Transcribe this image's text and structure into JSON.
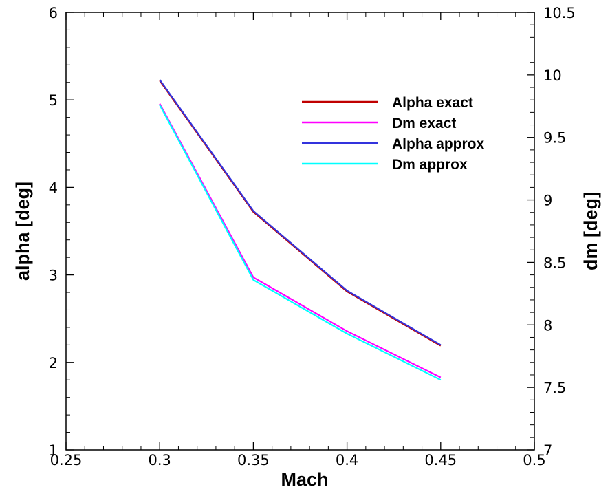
{
  "chart_data": {
    "type": "line",
    "xlabel": "Mach",
    "ylabel_left": "alpha [deg]",
    "ylabel_right": "dm [deg]",
    "xlim": [
      0.25,
      0.5
    ],
    "ylim_left": [
      1,
      6
    ],
    "ylim_right": [
      7,
      10.5
    ],
    "x_ticks": [
      "0.25",
      "0.3",
      "0.35",
      "0.4",
      "0.45",
      "0.5"
    ],
    "y_left_ticks": [
      "1",
      "2",
      "3",
      "4",
      "5",
      "6"
    ],
    "y_right_ticks": [
      "7",
      "7.5",
      "8",
      "8.5",
      "9",
      "9.5",
      "10",
      "10.5"
    ],
    "grid": false,
    "legend_position": "top-right",
    "x": [
      0.3,
      0.35,
      0.4,
      0.45
    ],
    "series": [
      {
        "name": "Alpha exact",
        "axis": "left",
        "color": "#c00000",
        "values": [
          5.22,
          3.72,
          2.81,
          2.19
        ]
      },
      {
        "name": "Dm exact",
        "axis": "right",
        "color": "#ff00ff",
        "values": [
          9.77,
          8.38,
          7.95,
          7.58
        ]
      },
      {
        "name": "Alpha approx",
        "axis": "left",
        "color": "#3333dd",
        "values": [
          5.23,
          3.73,
          2.82,
          2.2
        ]
      },
      {
        "name": "Dm approx",
        "axis": "right",
        "color": "#00ffff",
        "values": [
          9.76,
          8.36,
          7.93,
          7.56
        ]
      }
    ]
  }
}
